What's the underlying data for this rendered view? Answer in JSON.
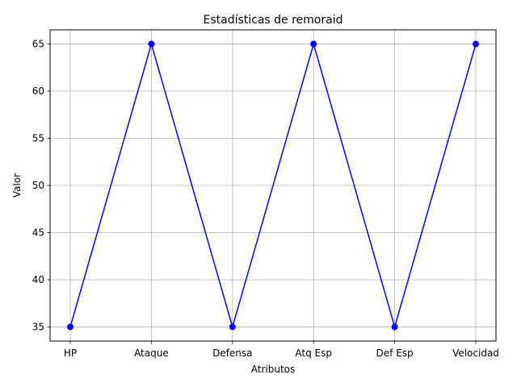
{
  "chart_data": {
    "type": "line",
    "title": "Estadísticas de remoraid",
    "xlabel": "Atributos",
    "ylabel": "Valor",
    "categories": [
      "HP",
      "Ataque",
      "Defensa",
      "Atq Esp",
      "Def Esp",
      "Velocidad"
    ],
    "values": [
      35,
      65,
      35,
      65,
      35,
      65
    ],
    "yticks": [
      35,
      40,
      45,
      50,
      55,
      60,
      65
    ],
    "ylim": [
      33.5,
      66.5
    ],
    "grid": true,
    "marker": "circle",
    "color": "#0000ff"
  }
}
